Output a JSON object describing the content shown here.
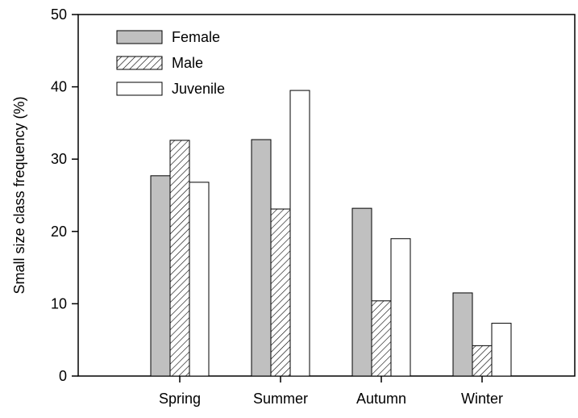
{
  "chart_data": {
    "type": "bar",
    "title": "",
    "xlabel": "",
    "ylabel": "Small size class frequency (%)",
    "categories": [
      "Spring",
      "Summer",
      "Autumn",
      "Winter"
    ],
    "ylim": [
      0,
      50
    ],
    "yticks": [
      0,
      10,
      20,
      30,
      40,
      50
    ],
    "grid": false,
    "legend_position": "top-left",
    "series": [
      {
        "name": "Female",
        "values": [
          27.7,
          32.7,
          23.2,
          11.5
        ],
        "fill": "#c0c0c0",
        "pattern": "solid"
      },
      {
        "name": "Male",
        "values": [
          32.6,
          23.1,
          10.4,
          4.2
        ],
        "fill": "#ffffff",
        "pattern": "diagonal-hatch"
      },
      {
        "name": "Juvenile",
        "values": [
          26.8,
          39.5,
          19.0,
          7.3
        ],
        "fill": "#ffffff",
        "pattern": "solid"
      }
    ]
  }
}
